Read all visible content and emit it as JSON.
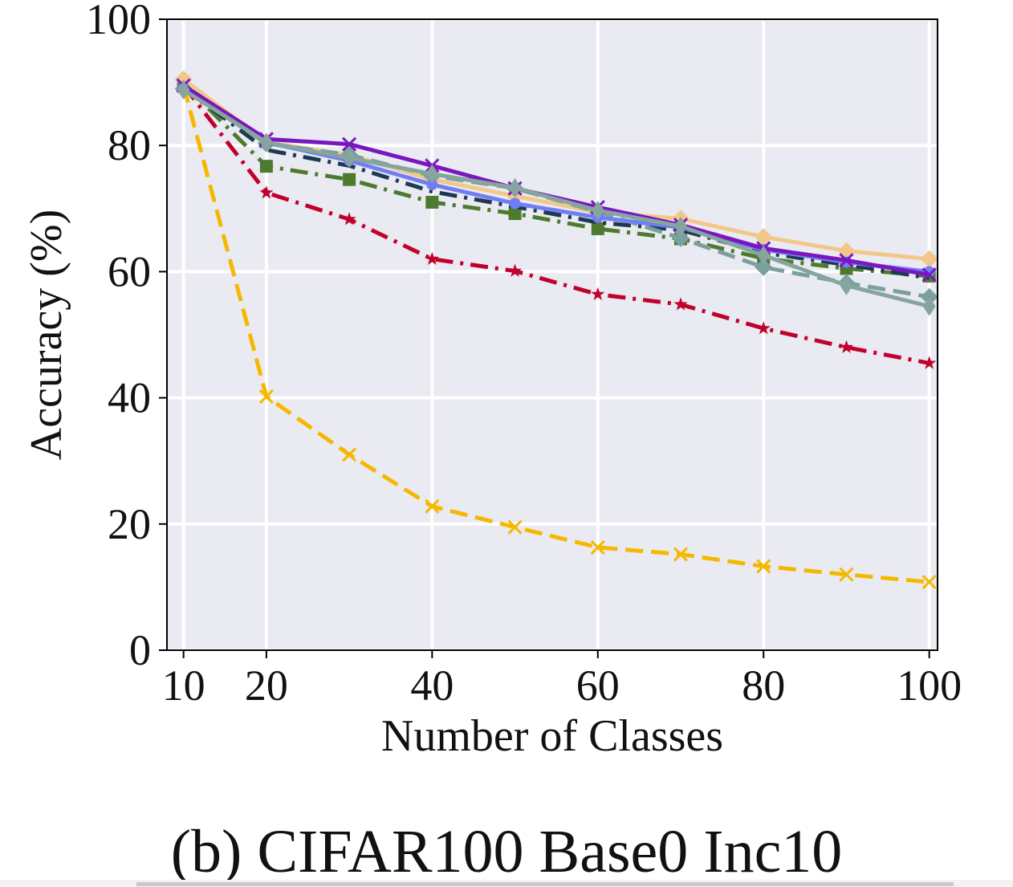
{
  "caption": "(b) CIFAR100 Base0 Inc10",
  "colors": {
    "plot_background": "#eaeaf2",
    "grid": "#ffffff"
  },
  "chart_data": {
    "type": "line",
    "title": "",
    "xlabel": "Number of Classes",
    "ylabel": "Accuracy (%)",
    "xlim": [
      8,
      101
    ],
    "ylim": [
      0,
      100
    ],
    "x_ticks": [
      10,
      20,
      40,
      60,
      80,
      100
    ],
    "y_ticks": [
      0,
      20,
      40,
      60,
      80,
      100
    ],
    "grid": true,
    "x": [
      10,
      20,
      30,
      40,
      50,
      60,
      70,
      80,
      90,
      100
    ],
    "series": [
      {
        "color": "#f5b800",
        "style": "dashed",
        "marker": "x",
        "values": [
          89.5,
          40.2,
          31.0,
          22.8,
          19.5,
          16.3,
          15.2,
          13.3,
          12.0,
          10.8
        ]
      },
      {
        "color": "#c1002b",
        "style": "dashdot",
        "marker": "star",
        "values": [
          89.5,
          72.5,
          68.3,
          62.0,
          60.1,
          56.4,
          54.8,
          51.0,
          48.0,
          45.5
        ]
      },
      {
        "color": "#4e7a2f",
        "style": "dashdot",
        "marker": "square",
        "values": [
          89.8,
          76.7,
          74.6,
          71.0,
          69.2,
          66.8,
          65.2,
          62.1,
          60.5,
          59.3
        ]
      },
      {
        "color": "#1c3a4f",
        "style": "dashdot",
        "marker": "none",
        "values": [
          89.2,
          79.3,
          76.8,
          72.7,
          70.3,
          67.8,
          66.6,
          63.0,
          61.1,
          59.0
        ]
      },
      {
        "color": "#f2c88a",
        "style": "solid",
        "marker": "diamond",
        "values": [
          90.5,
          80.5,
          78.5,
          74.6,
          72.0,
          69.4,
          68.4,
          65.5,
          63.3,
          62.0
        ]
      },
      {
        "color": "#7aa09e",
        "style": "dashed",
        "marker": "diamond",
        "values": [
          89.0,
          80.3,
          78.5,
          75.2,
          73.2,
          69.5,
          65.3,
          60.7,
          58.2,
          56.0
        ]
      },
      {
        "color": "#6f7ef5",
        "style": "solid",
        "marker": "circle",
        "values": [
          89.3,
          80.5,
          77.6,
          73.8,
          70.8,
          68.6,
          67.0,
          63.5,
          61.5,
          60.0
        ]
      },
      {
        "color": "#7a16c0",
        "style": "solid",
        "marker": "x",
        "values": [
          89.5,
          81.0,
          80.2,
          76.8,
          73.2,
          70.2,
          67.4,
          63.7,
          61.8,
          59.5
        ]
      },
      {
        "color": "#86a59d",
        "style": "solid",
        "marker": "thin_diamond",
        "values": [
          88.8,
          80.5,
          78.0,
          75.5,
          73.3,
          69.7,
          67.2,
          62.6,
          57.8,
          54.5
        ]
      }
    ]
  }
}
